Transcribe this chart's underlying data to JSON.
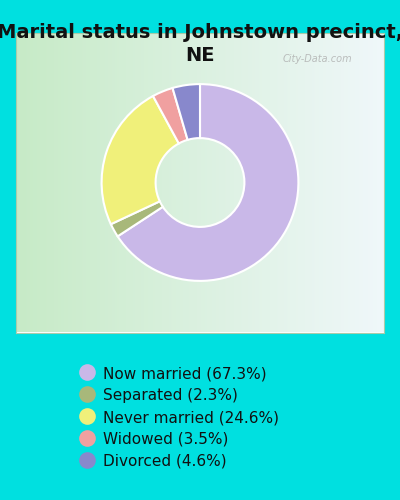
{
  "title": "Marital status in Johnstown precinct,\nNE",
  "slices": [
    67.3,
    2.3,
    24.6,
    3.5,
    4.6
  ],
  "labels": [
    "Now married (67.3%)",
    "Separated (2.3%)",
    "Never married (24.6%)",
    "Widowed (3.5%)",
    "Divorced (4.6%)"
  ],
  "colors": [
    "#c9b8e8",
    "#a8b87a",
    "#f0f07a",
    "#f0a0a0",
    "#8888cc"
  ],
  "bg_color": "#00e0e0",
  "chart_bg_left": "#c8e8c8",
  "chart_bg_right": "#e8f4f8",
  "title_fontsize": 14,
  "legend_fontsize": 11,
  "watermark": "City-Data.com"
}
